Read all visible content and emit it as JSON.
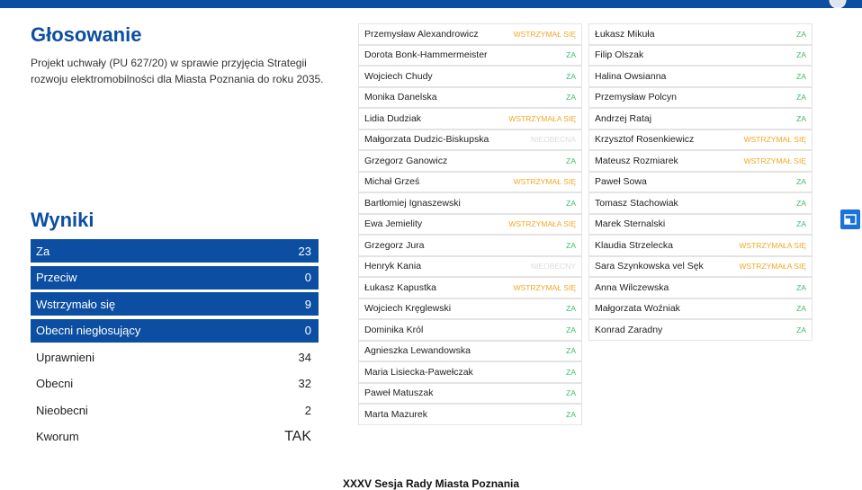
{
  "header": {
    "title": "Głosowanie",
    "subtitle": [
      "Projekt uchwały (PU 627/20) w sprawie przyjęcia Strategii",
      "rozwoju elektromobilności dla Miasta Poznania do roku 2035."
    ]
  },
  "results": {
    "title": "Wyniki",
    "rows": [
      {
        "label": "Za",
        "value": 23,
        "highlight": true
      },
      {
        "label": "Przeciw",
        "value": 0,
        "highlight": true
      },
      {
        "label": "Wstrzymało się",
        "value": 9,
        "highlight": true
      },
      {
        "label": "Obecni niegłosujący",
        "value": 0,
        "highlight": true
      },
      {
        "label": "Uprawnieni",
        "value": 34,
        "highlight": false
      },
      {
        "label": "Obecni",
        "value": 32,
        "highlight": false
      },
      {
        "label": "Nieobecni",
        "value": 2,
        "highlight": false
      },
      {
        "label": "Kworum",
        "value": "TAK",
        "highlight": false
      }
    ]
  },
  "votes": {
    "columns": [
      [
        {
          "name": "Przemysław Alexandrowicz",
          "vote": "WSTRZYMAŁ SIĘ",
          "color": "#f2a825"
        },
        {
          "name": "Dorota Bonk-Hammermeister",
          "vote": "ZA",
          "color": "#3dbb6e"
        },
        {
          "name": "Wojciech Chudy",
          "vote": "ZA",
          "color": "#3dbb6e"
        },
        {
          "name": "Monika Danelska",
          "vote": "ZA",
          "color": "#3dbb6e"
        },
        {
          "name": "Lidia Dudziak",
          "vote": "WSTRZYMAŁA SIĘ",
          "color": "#f2a825"
        },
        {
          "name": "Małgorzata Dudzic-Biskupska",
          "vote": "NIEOBECNA",
          "color": "#dcdcdc"
        },
        {
          "name": "Grzegorz Ganowicz",
          "vote": "ZA",
          "color": "#3dbb6e"
        },
        {
          "name": "Michał Grześ",
          "vote": "WSTRZYMAŁ SIĘ",
          "color": "#f2a825"
        },
        {
          "name": "Bartłomiej Ignaszewski",
          "vote": "ZA",
          "color": "#3dbb6e"
        },
        {
          "name": "Ewa Jemielity",
          "vote": "WSTRZYMAŁA SIĘ",
          "color": "#f2a825"
        },
        {
          "name": "Grzegorz Jura",
          "vote": "ZA",
          "color": "#3dbb6e"
        },
        {
          "name": "Henryk Kania",
          "vote": "NIEOBECNY",
          "color": "#dcdcdc"
        },
        {
          "name": "Łukasz Kapustka",
          "vote": "WSTRZYMAŁ SIĘ",
          "color": "#f2a825"
        },
        {
          "name": "Wojciech Kręglewski",
          "vote": "ZA",
          "color": "#3dbb6e"
        },
        {
          "name": "Dominika Król",
          "vote": "ZA",
          "color": "#3dbb6e"
        },
        {
          "name": "Agnieszka Lewandowska",
          "vote": "ZA",
          "color": "#3dbb6e"
        },
        {
          "name": "Maria Lisiecka-Pawełczak",
          "vote": "ZA",
          "color": "#3dbb6e"
        },
        {
          "name": "Paweł Matuszak",
          "vote": "ZA",
          "color": "#3dbb6e"
        },
        {
          "name": "Marta Mazurek",
          "vote": "ZA",
          "color": "#3dbb6e"
        }
      ],
      [
        {
          "name": "Łukasz Mikuła",
          "vote": "ZA",
          "color": "#3dbb6e"
        },
        {
          "name": "Filip Olszak",
          "vote": "ZA",
          "color": "#3dbb6e"
        },
        {
          "name": "Halina Owsianna",
          "vote": "ZA",
          "color": "#3dbb6e"
        },
        {
          "name": "Przemysław Polcyn",
          "vote": "ZA",
          "color": "#3dbb6e"
        },
        {
          "name": "Andrzej Rataj",
          "vote": "ZA",
          "color": "#3dbb6e"
        },
        {
          "name": "Krzysztof Rosenkiewicz",
          "vote": "WSTRZYMAŁ SIĘ",
          "color": "#f2a825"
        },
        {
          "name": "Mateusz Rozmiarek",
          "vote": "WSTRZYMAŁ SIĘ",
          "color": "#f2a825"
        },
        {
          "name": "Paweł Sowa",
          "vote": "ZA",
          "color": "#3dbb6e"
        },
        {
          "name": "Tomasz Stachowiak",
          "vote": "ZA",
          "color": "#3dbb6e"
        },
        {
          "name": "Marek Sternalski",
          "vote": "ZA",
          "color": "#3dbb6e"
        },
        {
          "name": "Klaudia Strzelecka",
          "vote": "WSTRZYMAŁA SIĘ",
          "color": "#f2a825"
        },
        {
          "name": "Sara Szynkowska vel Sęk",
          "vote": "WSTRZYMAŁA SIĘ",
          "color": "#f2a825"
        },
        {
          "name": "Anna Wilczewska",
          "vote": "ZA",
          "color": "#3dbb6e"
        },
        {
          "name": "Małgorzata Woźniak",
          "vote": "ZA",
          "color": "#3dbb6e"
        },
        {
          "name": "Konrad Zaradny",
          "vote": "ZA",
          "color": "#3dbb6e"
        }
      ]
    ]
  },
  "footer": {
    "text": "XXXV Sesja Rady Miasta Poznania"
  }
}
